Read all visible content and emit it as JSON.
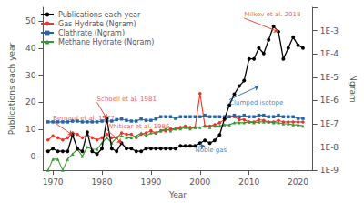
{
  "chart_data": {
    "type": "line",
    "xlabel": "Year",
    "ylabel": "Publications each year",
    "y2label": "Ngram",
    "x": [
      1969,
      1970,
      1971,
      1972,
      1973,
      1974,
      1975,
      1976,
      1977,
      1978,
      1979,
      1980,
      1981,
      1982,
      1983,
      1984,
      1985,
      1986,
      1987,
      1988,
      1989,
      1990,
      1991,
      1992,
      1993,
      1994,
      1995,
      1996,
      1997,
      1998,
      1999,
      2000,
      2001,
      2002,
      2003,
      2004,
      2005,
      2006,
      2007,
      2008,
      2009,
      2010,
      2011,
      2012,
      2013,
      2014,
      2015,
      2016,
      2017,
      2018,
      2019,
      2020,
      2021
    ],
    "xlim": [
      1968,
      2023
    ],
    "xticks": [
      1970,
      1980,
      1990,
      2000,
      2010,
      2020
    ],
    "ylim": [
      -5,
      55
    ],
    "yticks": [
      0,
      10,
      20,
      30,
      40,
      50
    ],
    "y2lim": [
      1e-09,
      0.01
    ],
    "y2ticks": [
      {
        "value": 1e-09,
        "label": "1E-9"
      },
      {
        "value": 1e-08,
        "label": "1E-8"
      },
      {
        "value": 1e-07,
        "label": "1E-7"
      },
      {
        "value": 1e-06,
        "label": "1E-6"
      },
      {
        "value": 1e-05,
        "label": "1E-5"
      },
      {
        "value": 0.0001,
        "label": "1E-4"
      },
      {
        "value": 0.001,
        "label": "1E-3"
      }
    ],
    "log": "y2",
    "grid": false,
    "legend": "upper left",
    "series": [
      {
        "name": "Publications each year",
        "color": "#000000",
        "marker": "circle",
        "values": [
          2,
          3,
          2,
          2,
          2,
          8,
          3,
          2,
          9,
          2,
          1,
          3,
          14,
          3,
          2,
          5,
          3,
          3,
          2,
          2,
          3,
          3,
          3,
          3,
          3,
          3,
          3,
          4,
          4,
          4,
          4,
          5,
          6,
          5,
          6,
          8,
          14,
          19,
          23,
          26,
          28,
          36,
          36,
          40,
          38,
          43,
          48,
          46,
          36,
          40,
          44,
          41,
          40
        ]
      },
      {
        "name": "Gas Hydrate (Ngram)",
        "color": "#e8362a",
        "marker": "circle",
        "axis": "y2",
        "values": [
          2e-08,
          3e-08,
          2.5e-08,
          2e-08,
          2.5e-08,
          4e-08,
          3.5e-08,
          2.5e-08,
          3.5e-08,
          2.5e-08,
          2e-08,
          2.5e-08,
          3.5e-08,
          2.5e-08,
          2.5e-08,
          4e-08,
          3.5e-08,
          3.5e-08,
          2.5e-08,
          3.5e-08,
          4e-08,
          5e-08,
          4e-08,
          5e-08,
          5e-08,
          6e-08,
          6e-08,
          7e-08,
          8e-08,
          7e-08,
          7e-08,
          2e-06,
          8e-08,
          8e-08,
          9e-08,
          1.1e-07,
          1.5e-07,
          2e-07,
          2e-07,
          1.5e-07,
          1.5e-07,
          1.2e-07,
          1.2e-07,
          1.5e-07,
          1.4e-07,
          1.2e-07,
          1.2e-07,
          1.4e-07,
          1.2e-07,
          1.2e-07,
          1.2e-07,
          1.2e-07,
          1.2e-07
        ]
      },
      {
        "name": "Clathrate (Ngram)",
        "color": "#2166ac",
        "marker": "square",
        "axis": "y2",
        "values": [
          1.2e-07,
          1.2e-07,
          1.2e-07,
          1.2e-07,
          1.2e-07,
          1.3e-07,
          1.3e-07,
          1.2e-07,
          1.2e-07,
          1.2e-07,
          1.2e-07,
          1.3e-07,
          1.3e-07,
          1.3e-07,
          1.5e-07,
          1.6e-07,
          1.4e-07,
          1.3e-07,
          1.3e-07,
          1.6e-07,
          1.4e-07,
          1.4e-07,
          1.6e-07,
          2e-07,
          2e-07,
          2e-07,
          1.7e-07,
          2e-07,
          2e-07,
          2e-07,
          2e-07,
          2e-07,
          2.3e-07,
          2e-07,
          2e-07,
          2e-07,
          2e-07,
          2e-07,
          2.3e-07,
          2e-07,
          2.3e-07,
          2e-07,
          2e-07,
          2.3e-07,
          2.3e-07,
          2e-07,
          2e-07,
          2.3e-07,
          2e-07,
          2e-07,
          2e-07,
          1.7e-07,
          1.7e-07
        ]
      },
      {
        "name": "Methane Hydrate (Ngram)",
        "color": "#339933",
        "marker": "triangle",
        "axis": "y2",
        "values": [
          1e-09,
          3e-09,
          3e-09,
          1e-09,
          3e-09,
          5e-09,
          8e-09,
          4e-09,
          1e-08,
          8e-09,
          8e-09,
          1.5e-08,
          2.5e-08,
          1.5e-08,
          2.5e-08,
          3e-08,
          2.5e-08,
          2.5e-08,
          3e-08,
          4e-08,
          3e-08,
          4e-08,
          4e-08,
          5e-08,
          6e-08,
          5e-08,
          6e-08,
          6e-08,
          7e-08,
          6e-08,
          7e-08,
          7e-08,
          8e-08,
          7e-08,
          8e-08,
          8e-08,
          9e-08,
          9e-08,
          1.1e-07,
          1.1e-07,
          1.1e-07,
          1.2e-07,
          1.1e-07,
          1.2e-07,
          1.2e-07,
          1.2e-07,
          1.1e-07,
          1.1e-07,
          1e-07,
          1e-07,
          9e-08,
          9e-08,
          8e-08
        ]
      }
    ],
    "annotations": [
      {
        "text": "Bernard et al. 1977",
        "xy": [
          1974,
          8
        ],
        "xytext": [
          1970,
          13
        ],
        "color": "#e8362a"
      },
      {
        "text": "Schoell et al. 1981",
        "xy": [
          1981,
          14
        ],
        "xytext": [
          1979,
          20
        ],
        "color": "#e8362a"
      },
      {
        "text": "Whiticar et al. 1986",
        "xy": [
          1984,
          5
        ],
        "xytext": [
          1981,
          10
        ],
        "color": "#e8362a"
      },
      {
        "text": "Milkov et al. 2018",
        "xy": [
          2016,
          46
        ],
        "xytext": [
          2009,
          51
        ],
        "color": "#e8362a"
      },
      {
        "text": "Noble gas",
        "xy": [
          2001,
          4
        ],
        "xytext": [
          1999,
          3.5
        ],
        "color": "#2166ac"
      },
      {
        "text": "Clumped isotope",
        "xy": [
          2012,
          26
        ],
        "xytext": [
          2006,
          21
        ],
        "color": "#2166ac"
      }
    ]
  }
}
